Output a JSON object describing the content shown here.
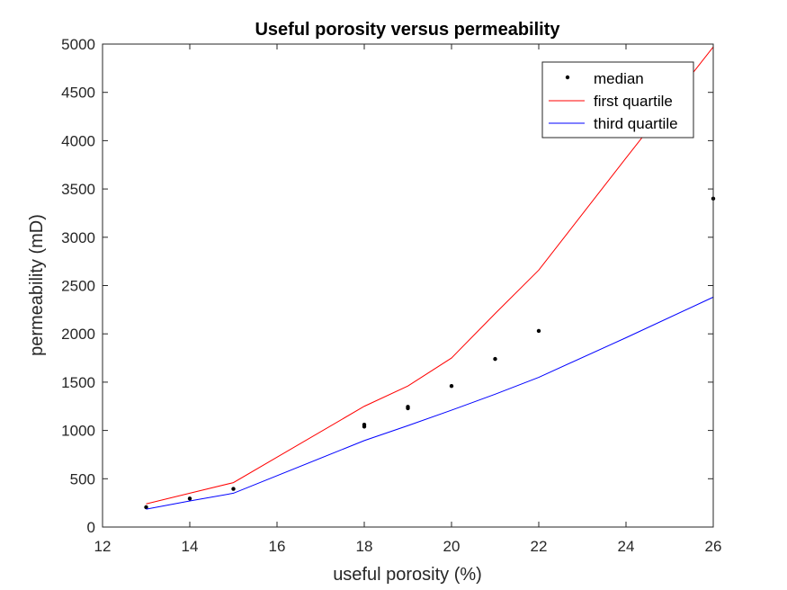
{
  "chart_data": {
    "type": "line",
    "title": "Useful porosity versus permeability",
    "xlabel": "useful porosity (%)",
    "ylabel": "permeability (mD)",
    "xlim": [
      12,
      26
    ],
    "ylim": [
      0,
      5000
    ],
    "xticks": [
      12,
      14,
      16,
      18,
      20,
      22,
      24,
      26
    ],
    "yticks": [
      0,
      500,
      1000,
      1500,
      2000,
      2500,
      3000,
      3500,
      4000,
      4500,
      5000
    ],
    "grid": false,
    "legend_position": "top-right",
    "series": [
      {
        "name": "median",
        "style": "markers",
        "color": "#000000",
        "x": [
          13,
          14,
          15,
          18,
          18,
          19,
          19,
          20,
          21,
          22,
          26
        ],
        "y": [
          205,
          295,
          395,
          1040,
          1060,
          1230,
          1245,
          1460,
          1740,
          2030,
          3400
        ]
      },
      {
        "name": "first quartile",
        "style": "line",
        "color": "#ff0000",
        "x": [
          13,
          14,
          15,
          18,
          19,
          20,
          21,
          22,
          24,
          26
        ],
        "y": [
          240,
          350,
          460,
          1250,
          1460,
          1750,
          2210,
          2660,
          3820,
          4970
        ]
      },
      {
        "name": "third quartile",
        "style": "line",
        "color": "#0000ff",
        "x": [
          13,
          14,
          15,
          18,
          19,
          20,
          21,
          22,
          24,
          26
        ],
        "y": [
          185,
          270,
          350,
          895,
          1050,
          1210,
          1375,
          1550,
          1960,
          2380
        ]
      }
    ]
  }
}
